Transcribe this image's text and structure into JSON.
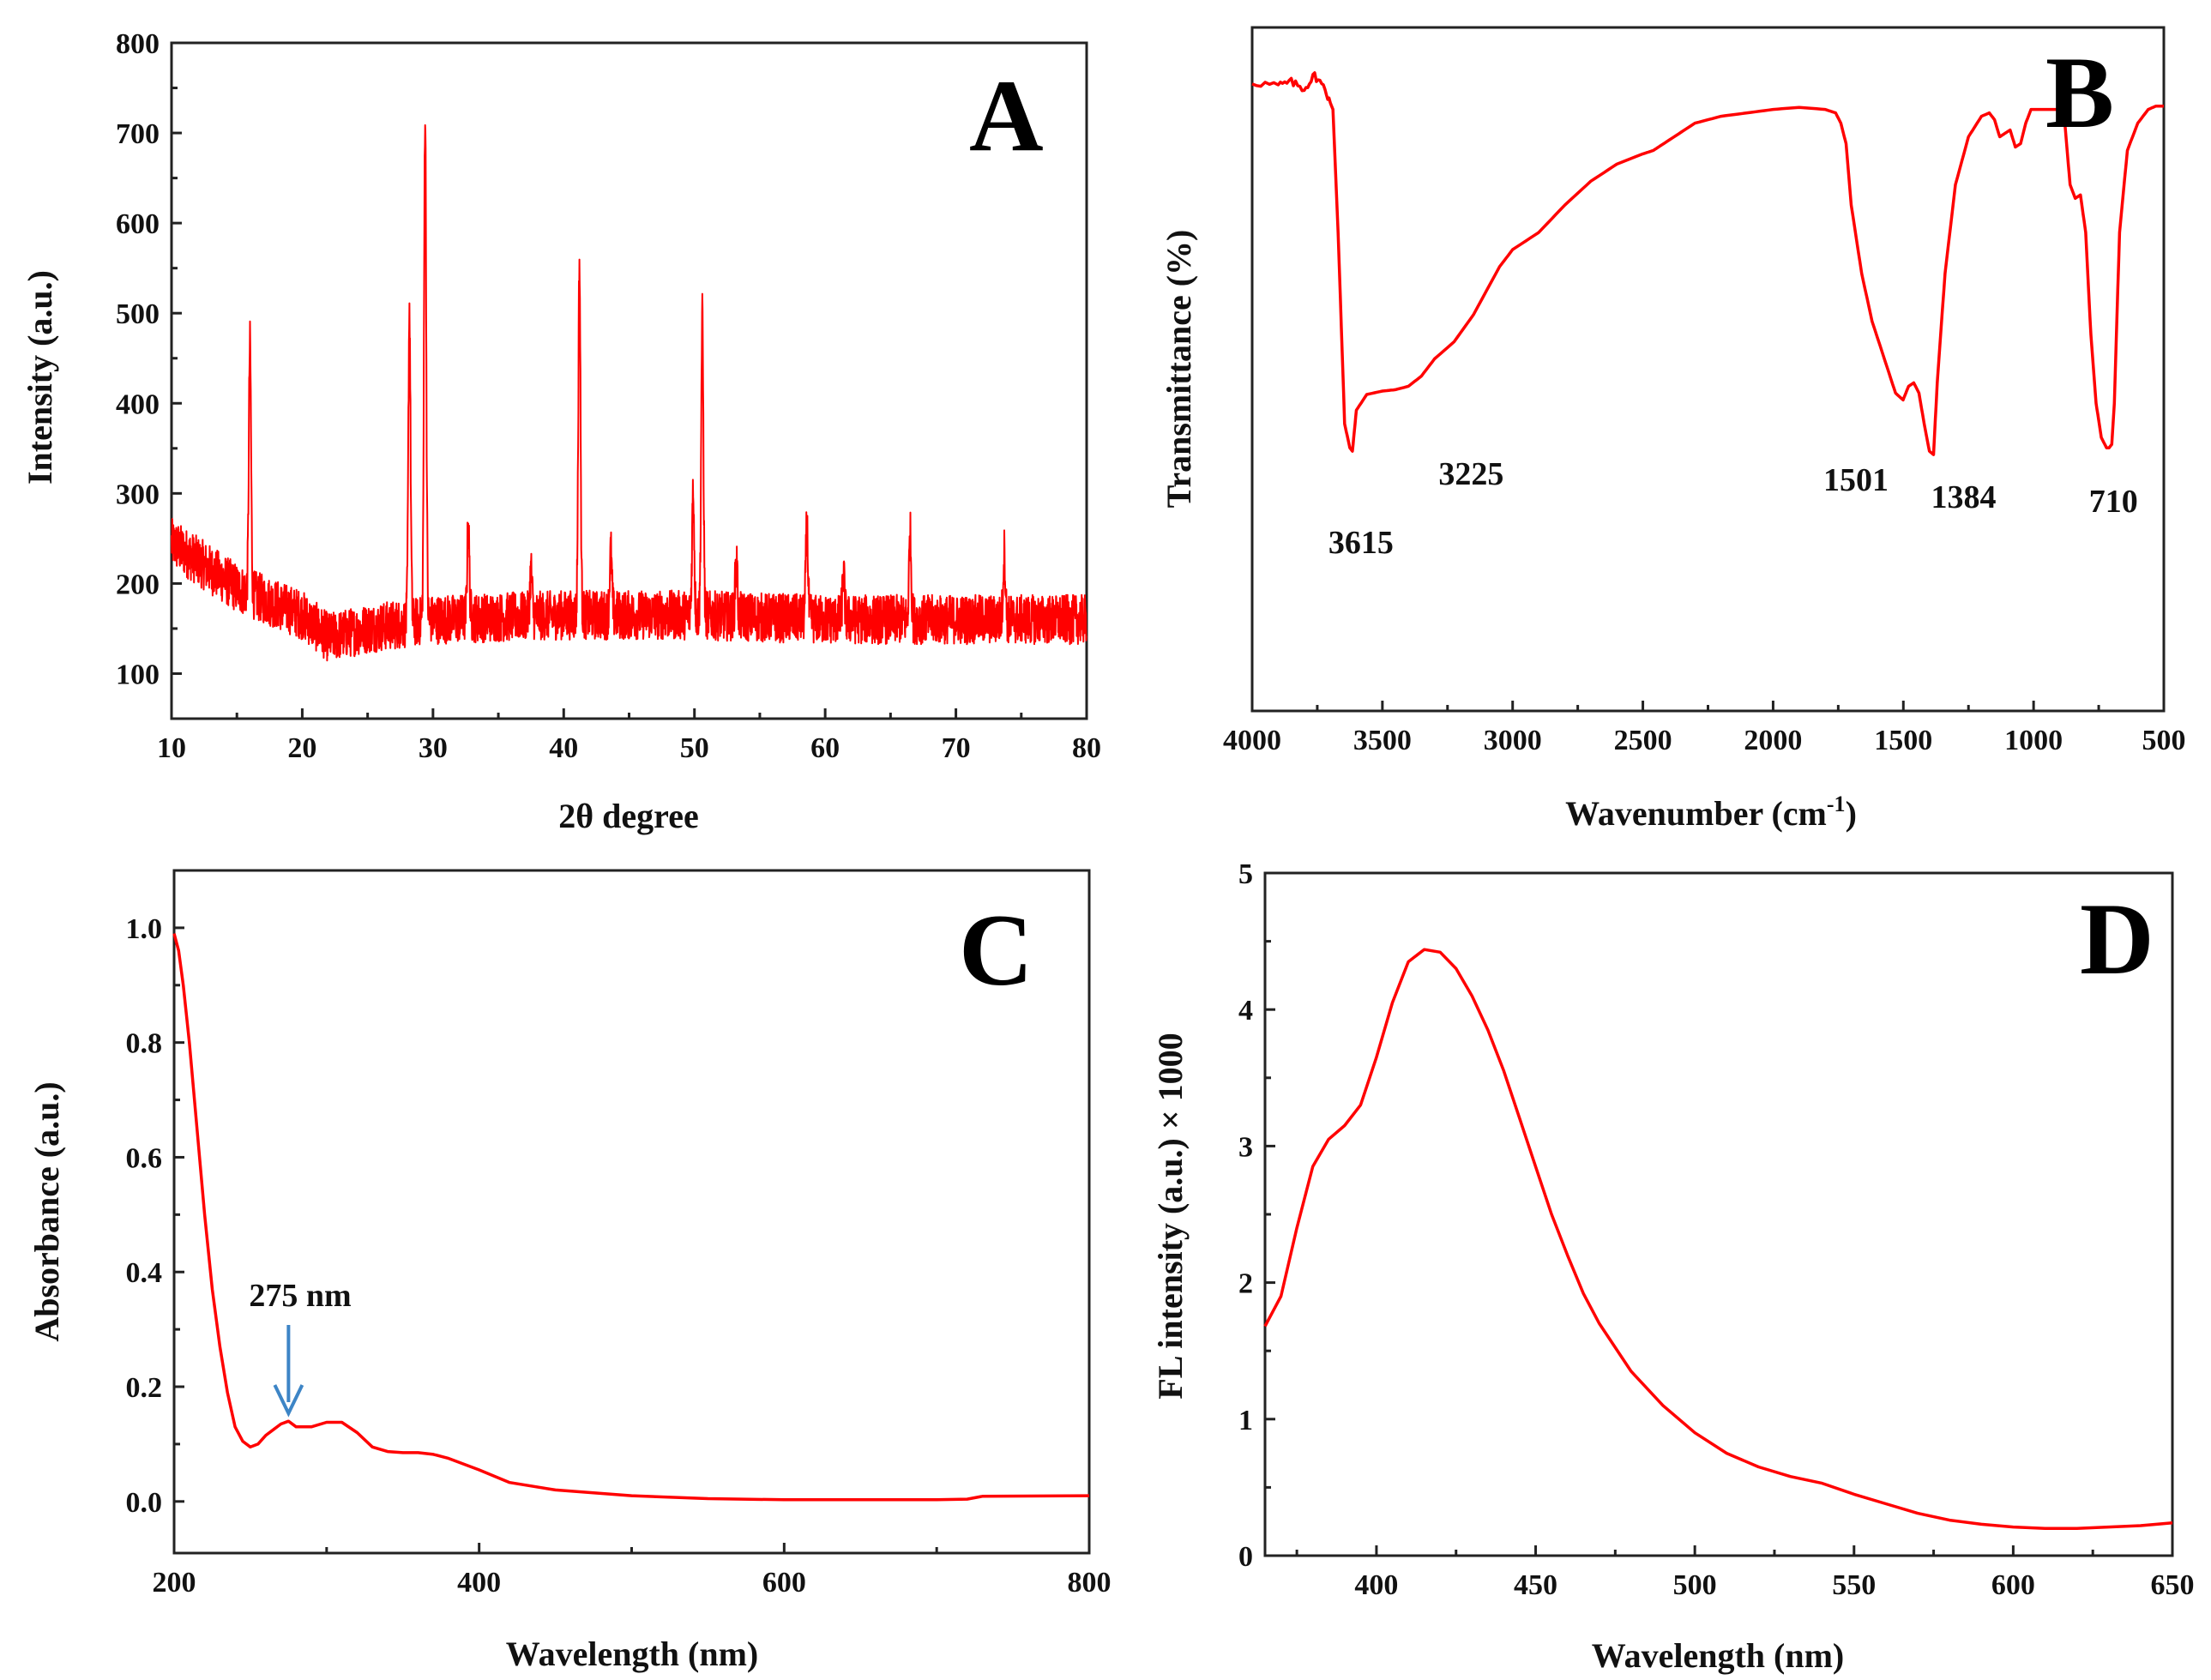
{
  "chart_data": [
    {
      "panel": "A",
      "type": "line",
      "title": "",
      "xlabel": "2θ degree",
      "ylabel": "Intensity (a.u.)",
      "xlim": [
        10,
        80
      ],
      "ylim": [
        50,
        800
      ],
      "xticks": [
        10,
        20,
        30,
        40,
        50,
        60,
        70,
        80
      ],
      "yticks": [
        100,
        200,
        300,
        400,
        500,
        600,
        700,
        800
      ],
      "color": "#ff0000",
      "baseline": [
        [
          10,
          245
        ],
        [
          15,
          195
        ],
        [
          20,
          165
        ],
        [
          22,
          140
        ],
        [
          25,
          150
        ],
        [
          30,
          160
        ],
        [
          40,
          165
        ],
        [
          50,
          165
        ],
        [
          60,
          160
        ],
        [
          70,
          160
        ],
        [
          80,
          160
        ]
      ],
      "peaks": [
        {
          "x": 16.0,
          "y": 465
        },
        {
          "x": 28.2,
          "y": 505
        },
        {
          "x": 29.4,
          "y": 725
        },
        {
          "x": 32.7,
          "y": 265
        },
        {
          "x": 37.5,
          "y": 215
        },
        {
          "x": 41.2,
          "y": 555
        },
        {
          "x": 43.6,
          "y": 235
        },
        {
          "x": 49.9,
          "y": 305
        },
        {
          "x": 50.6,
          "y": 495
        },
        {
          "x": 53.2,
          "y": 230
        },
        {
          "x": 58.6,
          "y": 265
        },
        {
          "x": 61.4,
          "y": 210
        },
        {
          "x": 66.5,
          "y": 255
        },
        {
          "x": 73.7,
          "y": 235
        }
      ]
    },
    {
      "panel": "B",
      "type": "line",
      "title": "",
      "xlabel": "Wavenumber (cm",
      "xlabel_sup": "-1",
      "xlabel_end": ")",
      "ylabel": "Transmittance (%)",
      "xlim": [
        4000,
        500
      ],
      "ylim": [
        0,
        100
      ],
      "xticks": [
        4000,
        3500,
        3000,
        2500,
        2000,
        1500,
        1000,
        500
      ],
      "color": "#ff0000",
      "points": [
        [
          4000,
          92
        ],
        [
          3900,
          91.5
        ],
        [
          3850,
          92
        ],
        [
          3800,
          91
        ],
        [
          3760,
          93
        ],
        [
          3720,
          91
        ],
        [
          3690,
          88
        ],
        [
          3670,
          70
        ],
        [
          3645,
          42
        ],
        [
          3625,
          38.5
        ],
        [
          3615,
          38
        ],
        [
          3600,
          44
        ],
        [
          3560,
          46.3
        ],
        [
          3500,
          46.8
        ],
        [
          3450,
          47
        ],
        [
          3400,
          47.5
        ],
        [
          3350,
          49
        ],
        [
          3300,
          51.5
        ],
        [
          3225,
          54
        ],
        [
          3150,
          58
        ],
        [
          3050,
          65
        ],
        [
          3000,
          67.5
        ],
        [
          2900,
          70
        ],
        [
          2800,
          74
        ],
        [
          2700,
          77.5
        ],
        [
          2600,
          80
        ],
        [
          2500,
          81.5
        ],
        [
          2460,
          82
        ],
        [
          2440,
          82.5
        ],
        [
          2400,
          83.5
        ],
        [
          2300,
          86
        ],
        [
          2200,
          87
        ],
        [
          2100,
          87.5
        ],
        [
          2000,
          88
        ],
        [
          1900,
          88.3
        ],
        [
          1800,
          88
        ],
        [
          1760,
          87.5
        ],
        [
          1740,
          86
        ],
        [
          1720,
          83
        ],
        [
          1700,
          74
        ],
        [
          1660,
          64
        ],
        [
          1620,
          57
        ],
        [
          1560,
          50
        ],
        [
          1530,
          46.5
        ],
        [
          1501,
          45.5
        ],
        [
          1480,
          47.5
        ],
        [
          1460,
          48
        ],
        [
          1440,
          46.5
        ],
        [
          1420,
          42
        ],
        [
          1400,
          38
        ],
        [
          1384,
          37.5
        ],
        [
          1370,
          48
        ],
        [
          1340,
          64
        ],
        [
          1300,
          77
        ],
        [
          1250,
          84
        ],
        [
          1200,
          87
        ],
        [
          1170,
          87.5
        ],
        [
          1150,
          86.5
        ],
        [
          1130,
          84
        ],
        [
          1110,
          84.5
        ],
        [
          1090,
          85
        ],
        [
          1070,
          82.5
        ],
        [
          1050,
          83
        ],
        [
          1030,
          86
        ],
        [
          1010,
          88
        ],
        [
          950,
          88
        ],
        [
          900,
          88
        ],
        [
          880,
          86
        ],
        [
          860,
          77
        ],
        [
          840,
          75
        ],
        [
          820,
          75.5
        ],
        [
          800,
          70
        ],
        [
          780,
          55
        ],
        [
          760,
          45
        ],
        [
          740,
          40
        ],
        [
          720,
          38.5
        ],
        [
          710,
          38.5
        ],
        [
          700,
          39
        ],
        [
          690,
          45
        ],
        [
          670,
          70
        ],
        [
          640,
          82
        ],
        [
          600,
          86
        ],
        [
          560,
          88
        ],
        [
          530,
          88.5
        ],
        [
          500,
          88.5
        ]
      ],
      "annotations": [
        {
          "text": "3615",
          "x": 3615
        },
        {
          "text": "3225",
          "x": 3225
        },
        {
          "text": "1501",
          "x": 1501
        },
        {
          "text": "1384",
          "x": 1384
        },
        {
          "text": "710",
          "x": 710
        }
      ]
    },
    {
      "panel": "C",
      "type": "line",
      "title": "",
      "xlabel": "Wavelength (nm)",
      "ylabel": "Absorbance (a.u.)",
      "xlim": [
        200,
        800
      ],
      "ylim": [
        -0.09,
        1.1
      ],
      "xticks": [
        200,
        400,
        600,
        800
      ],
      "yticks": [
        0.0,
        0.2,
        0.4,
        0.6,
        0.8,
        1.0
      ],
      "ytick_labels": [
        "0.0",
        "0.2",
        "0.4",
        "0.6",
        "0.8",
        "1.0"
      ],
      "color": "#ff0000",
      "points": [
        [
          200,
          0.99
        ],
        [
          203,
          0.96
        ],
        [
          206,
          0.9
        ],
        [
          210,
          0.8
        ],
        [
          215,
          0.65
        ],
        [
          220,
          0.5
        ],
        [
          225,
          0.37
        ],
        [
          230,
          0.27
        ],
        [
          235,
          0.19
        ],
        [
          240,
          0.13
        ],
        [
          245,
          0.105
        ],
        [
          250,
          0.095
        ],
        [
          255,
          0.1
        ],
        [
          260,
          0.115
        ],
        [
          265,
          0.125
        ],
        [
          270,
          0.135
        ],
        [
          275,
          0.14
        ],
        [
          280,
          0.13
        ],
        [
          290,
          0.13
        ],
        [
          300,
          0.138
        ],
        [
          310,
          0.138
        ],
        [
          320,
          0.12
        ],
        [
          330,
          0.095
        ],
        [
          340,
          0.087
        ],
        [
          350,
          0.085
        ],
        [
          360,
          0.085
        ],
        [
          370,
          0.082
        ],
        [
          380,
          0.075
        ],
        [
          400,
          0.055
        ],
        [
          420,
          0.033
        ],
        [
          450,
          0.02
        ],
        [
          500,
          0.01
        ],
        [
          550,
          0.005
        ],
        [
          600,
          0.003
        ],
        [
          650,
          0.003
        ],
        [
          700,
          0.003
        ],
        [
          720,
          0.004
        ],
        [
          730,
          0.009
        ],
        [
          800,
          0.01
        ]
      ],
      "annotation": {
        "text": "275 nm",
        "x": 275,
        "arrow_color": "#3d85c6"
      }
    },
    {
      "panel": "D",
      "type": "line",
      "title": "",
      "xlabel": "Wavelength (nm)",
      "ylabel": "FL intensity (a.u.) × 1000",
      "xlim": [
        365,
        650
      ],
      "ylim": [
        0,
        5
      ],
      "xticks": [
        400,
        450,
        500,
        550,
        600,
        650
      ],
      "yticks": [
        0,
        1,
        2,
        3,
        4,
        5
      ],
      "color": "#ff0000",
      "points": [
        [
          365,
          1.68
        ],
        [
          370,
          1.9
        ],
        [
          375,
          2.4
        ],
        [
          380,
          2.85
        ],
        [
          385,
          3.05
        ],
        [
          390,
          3.15
        ],
        [
          395,
          3.3
        ],
        [
          400,
          3.65
        ],
        [
          405,
          4.05
        ],
        [
          410,
          4.35
        ],
        [
          415,
          4.44
        ],
        [
          420,
          4.42
        ],
        [
          425,
          4.3
        ],
        [
          430,
          4.1
        ],
        [
          435,
          3.85
        ],
        [
          440,
          3.55
        ],
        [
          445,
          3.2
        ],
        [
          450,
          2.85
        ],
        [
          455,
          2.5
        ],
        [
          460,
          2.2
        ],
        [
          465,
          1.92
        ],
        [
          470,
          1.7
        ],
        [
          480,
          1.35
        ],
        [
          490,
          1.1
        ],
        [
          500,
          0.9
        ],
        [
          510,
          0.75
        ],
        [
          520,
          0.65
        ],
        [
          530,
          0.58
        ],
        [
          540,
          0.53
        ],
        [
          550,
          0.45
        ],
        [
          560,
          0.38
        ],
        [
          570,
          0.31
        ],
        [
          580,
          0.26
        ],
        [
          590,
          0.23
        ],
        [
          600,
          0.21
        ],
        [
          610,
          0.2
        ],
        [
          620,
          0.2
        ],
        [
          630,
          0.21
        ],
        [
          640,
          0.22
        ],
        [
          650,
          0.24
        ]
      ]
    }
  ]
}
